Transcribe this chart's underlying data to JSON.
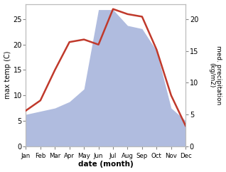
{
  "months": [
    "Jan",
    "Feb",
    "Mar",
    "Apr",
    "May",
    "Jun",
    "Jul",
    "Aug",
    "Sep",
    "Oct",
    "Nov",
    "Dec"
  ],
  "month_indices": [
    1,
    2,
    3,
    4,
    5,
    6,
    7,
    8,
    9,
    10,
    11,
    12
  ],
  "temperature": [
    7.0,
    9.0,
    15.0,
    20.5,
    21.0,
    20.0,
    27.0,
    26.0,
    25.5,
    19.0,
    10.0,
    4.0
  ],
  "precipitation": [
    5.0,
    5.5,
    6.0,
    7.0,
    9.0,
    21.5,
    21.5,
    19.0,
    18.5,
    15.0,
    6.0,
    4.0
  ],
  "temp_color": "#c0392b",
  "precip_fill_color": "#b0bcdf",
  "ylabel_left": "max temp (C)",
  "ylabel_right": "med. precipitation\n(kg/m2)",
  "xlabel": "date (month)",
  "ylim_left": [
    0,
    28
  ],
  "ylim_right": [
    0,
    22.4
  ],
  "yticks_left": [
    0,
    5,
    10,
    15,
    20,
    25
  ],
  "yticks_right": [
    0,
    5,
    10,
    15,
    20
  ],
  "background_color": "#ffffff"
}
